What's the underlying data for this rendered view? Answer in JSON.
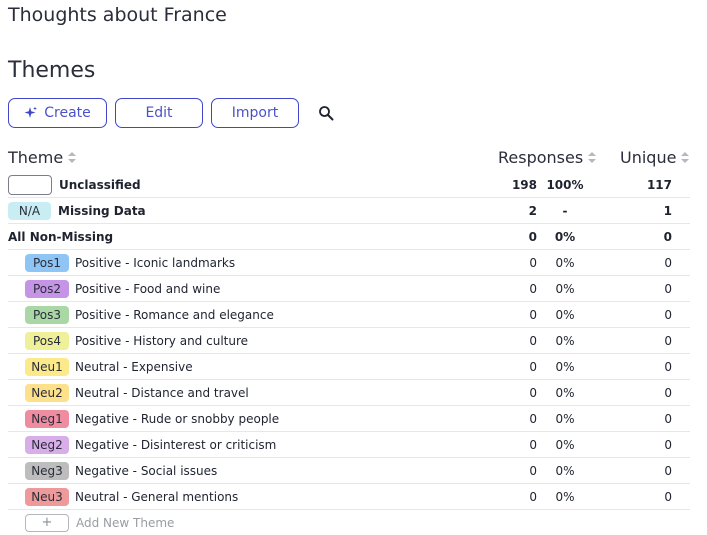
{
  "page": {
    "title": "Thoughts about France",
    "section_title": "Themes"
  },
  "toolbar": {
    "create_label": "Create",
    "edit_label": "Edit",
    "import_label": "Import",
    "search_icon": "search-icon",
    "create_icon": "sparkle-icon",
    "accent_color": "#3f46c8"
  },
  "table": {
    "headers": {
      "theme": "Theme",
      "responses": "Responses",
      "unique": "Unique"
    },
    "unclassified": {
      "label": "Unclassified",
      "responses": "198",
      "pct": "100%",
      "unique": "117"
    },
    "missing": {
      "code": "N/A",
      "label": "Missing Data",
      "responses": "2",
      "pct": "-",
      "unique": "1",
      "color": "#c8eef4"
    },
    "non_missing": {
      "label": "All Non-Missing",
      "responses": "0",
      "pct": "0%",
      "unique": "0"
    },
    "themes": [
      {
        "code": "Pos1",
        "label": "Positive - Iconic landmarks",
        "responses": "0",
        "pct": "0%",
        "unique": "0",
        "color": "#8ec5f5"
      },
      {
        "code": "Pos2",
        "label": "Positive - Food and wine",
        "responses": "0",
        "pct": "0%",
        "unique": "0",
        "color": "#c694e6"
      },
      {
        "code": "Pos3",
        "label": "Positive - Romance and elegance",
        "responses": "0",
        "pct": "0%",
        "unique": "0",
        "color": "#a9d8a4"
      },
      {
        "code": "Pos4",
        "label": "Positive - History and culture",
        "responses": "0",
        "pct": "0%",
        "unique": "0",
        "color": "#eef09a"
      },
      {
        "code": "Neu1",
        "label": "Neutral - Expensive",
        "responses": "0",
        "pct": "0%",
        "unique": "0",
        "color": "#fbe98a"
      },
      {
        "code": "Neu2",
        "label": "Neutral - Distance and travel",
        "responses": "0",
        "pct": "0%",
        "unique": "0",
        "color": "#fde08a"
      },
      {
        "code": "Neg1",
        "label": "Negative - Rude or snobby people",
        "responses": "0",
        "pct": "0%",
        "unique": "0",
        "color": "#f08ca0"
      },
      {
        "code": "Neg2",
        "label": "Negative - Disinterest or criticism",
        "responses": "0",
        "pct": "0%",
        "unique": "0",
        "color": "#d9aee8"
      },
      {
        "code": "Neg3",
        "label": "Negative - Social issues",
        "responses": "0",
        "pct": "0%",
        "unique": "0",
        "color": "#bdbdbd"
      },
      {
        "code": "Neu3",
        "label": "Neutral - General mentions",
        "responses": "0",
        "pct": "0%",
        "unique": "0",
        "color": "#ee9a9a"
      }
    ],
    "add_new_label": "Add New Theme",
    "add_new_symbol": "+"
  }
}
